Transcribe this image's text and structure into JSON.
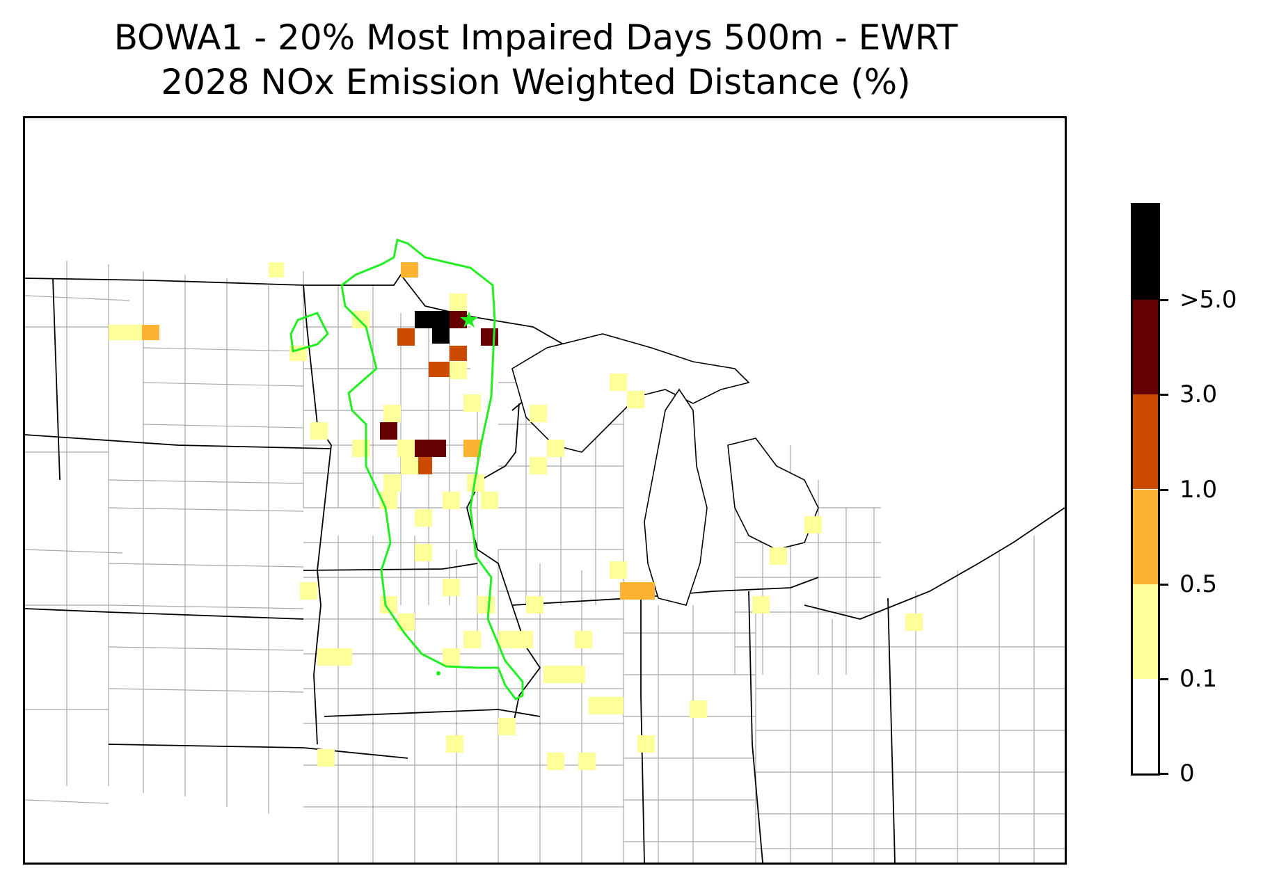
{
  "title": {
    "line1": "BOWA1 - 20% Most Impaired Days 500m - EWRT",
    "line2": "2028 NOx Emission Weighted Distance (%)"
  },
  "legend": {
    "bins": [
      {
        "label": "0",
        "color": "#ffffff"
      },
      {
        "label": "0.1",
        "color": "#ffff99"
      },
      {
        "label": "0.5",
        "color": "#feb232"
      },
      {
        "label": "1.0",
        "color": "#cb4b02"
      },
      {
        "label": "3.0",
        "color": "#660000"
      },
      {
        "label": ">5.0",
        "color": "#000000"
      }
    ]
  },
  "map": {
    "region": "Upper Midwest United States",
    "boundary_color": "#22ee22",
    "site_marker": "star",
    "state_line_color": "#000000",
    "county_line_color": "#a8a8a8"
  }
}
